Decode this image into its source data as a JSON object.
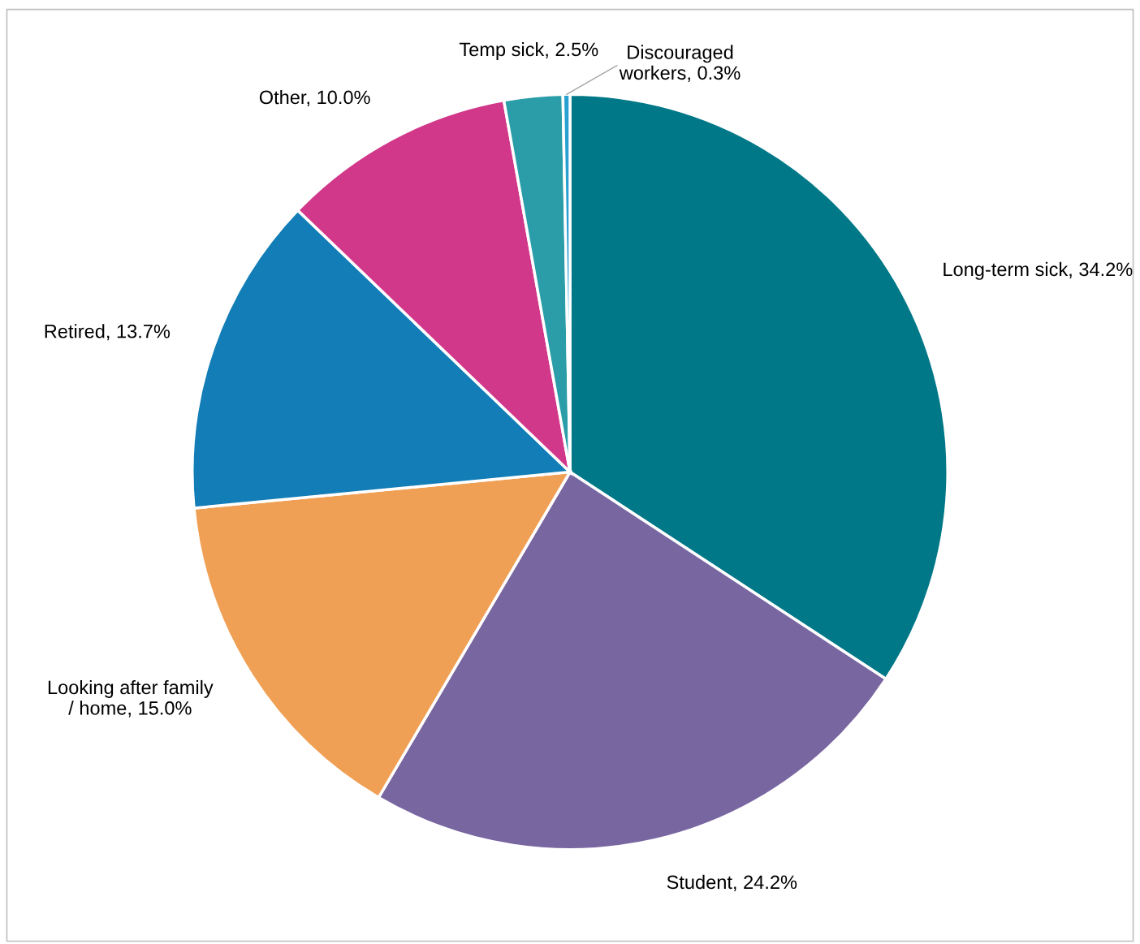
{
  "chart_data": {
    "type": "pie",
    "categories": [
      "Long-term sick",
      "Student",
      "Looking after family / home",
      "Retired",
      "Other",
      "Temp sick",
      "Discouraged workers"
    ],
    "values": [
      34.2,
      24.2,
      15.0,
      13.7,
      10.0,
      2.5,
      0.3
    ],
    "colors": [
      "#007887",
      "#7866a1",
      "#f0a055",
      "#127db6",
      "#d2388a",
      "#2a9da8",
      "#28a0d0"
    ],
    "value_labels": [
      "34.2%",
      "24.2%",
      "15.0%",
      "13.7%",
      "10.0%",
      "2.5%",
      "0.3%"
    ],
    "legend": false
  }
}
